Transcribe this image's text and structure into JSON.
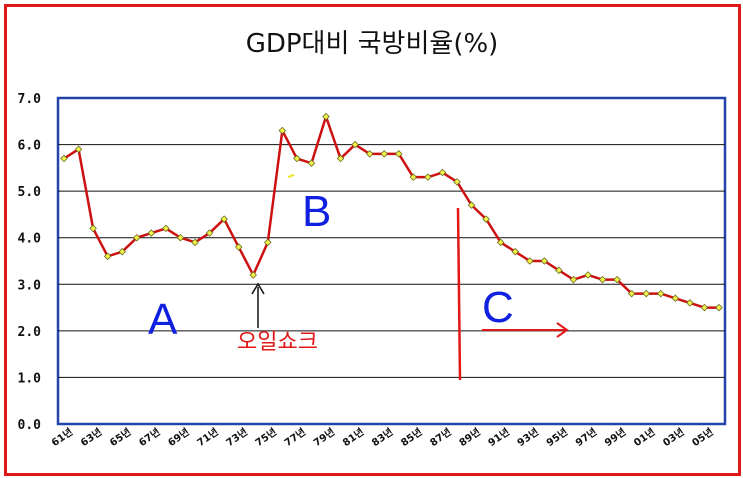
{
  "chart_data": {
    "type": "line",
    "title": "GDP대비 국방비율(%)",
    "xlabel": "",
    "ylabel": "",
    "ylim": [
      0,
      7
    ],
    "yticks": [
      "0.0",
      "1.0",
      "2.0",
      "3.0",
      "4.0",
      "5.0",
      "6.0",
      "7.0"
    ],
    "x_tick_labels": [
      "61년",
      "63년",
      "65년",
      "67년",
      "69년",
      "71년",
      "73년",
      "75년",
      "77년",
      "79년",
      "81년",
      "83년",
      "85년",
      "87년",
      "89년",
      "91년",
      "93년",
      "95년",
      "97년",
      "99년",
      "01년",
      "03년",
      "05년"
    ],
    "grid": true,
    "series": [
      {
        "color": "#cc1111",
        "marker_color": "#f2f24a",
        "values": [
          5.7,
          5.9,
          4.2,
          3.6,
          3.7,
          4.0,
          4.1,
          4.2,
          4.0,
          3.9,
          4.1,
          4.4,
          3.8,
          3.2,
          3.9,
          6.3,
          5.7,
          5.6,
          6.6,
          5.7,
          6.0,
          5.8,
          5.8,
          5.8,
          5.3,
          5.3,
          5.4,
          5.2,
          4.7,
          4.4,
          3.9,
          3.7,
          3.5,
          3.5,
          3.3,
          3.1,
          3.2,
          3.1,
          3.1,
          2.8,
          2.8,
          2.8,
          2.7,
          2.6,
          2.5,
          2.5
        ]
      }
    ],
    "annotations": {
      "A": "A",
      "B": "B",
      "C": "C",
      "oil_shock": "오일쇼크"
    }
  }
}
